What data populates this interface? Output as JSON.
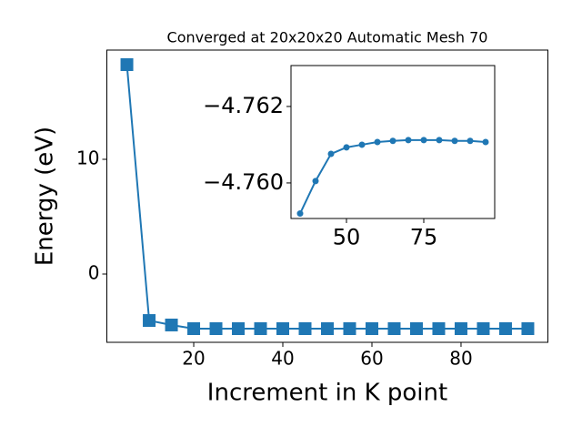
{
  "chart_data": [
    {
      "type": "line",
      "title": "Converged at 20x20x20 Automatic Mesh 70",
      "x_label": "Increment in K point",
      "y_label": "Energy (eV)",
      "x": [
        5,
        10,
        15,
        20,
        25,
        30,
        35,
        40,
        45,
        50,
        55,
        60,
        65,
        70,
        75,
        80,
        85,
        90,
        95
      ],
      "values": [
        18.25,
        -4.05,
        -4.44,
        -4.76,
        -4.76,
        -4.76,
        -4.76,
        -4.76,
        -4.76,
        -4.76,
        -4.76,
        -4.76,
        -4.76,
        -4.76,
        -4.76,
        -4.76,
        -4.76,
        -4.76,
        -4.76
      ],
      "color": "#1f77b4",
      "marker": "square",
      "xlim": [
        0.5,
        99.5
      ],
      "ylim": [
        -5.95,
        19.52
      ],
      "xticks": [
        20,
        40,
        60,
        80
      ],
      "yticks": [
        0,
        10
      ]
    },
    {
      "type": "line",
      "x": [
        35,
        40,
        45,
        50,
        55,
        60,
        65,
        70,
        75,
        80,
        85,
        90,
        95
      ],
      "values": [
        -4.7592,
        -4.76005,
        -4.76076,
        -4.76093,
        -4.761,
        -4.76107,
        -4.7611,
        -4.76112,
        -4.76112,
        -4.76112,
        -4.7611,
        -4.7611,
        -4.76107
      ],
      "color": "#1f77b4",
      "marker": "circle",
      "xlim": [
        32.06,
        97.94
      ],
      "ylim": [
        -4.75907,
        -4.76307
      ],
      "xticks": [
        50,
        75
      ],
      "yticks": [
        {
          "value": -4.762,
          "label": "−4.762"
        },
        {
          "value": -4.76,
          "label": "−4.760"
        }
      ]
    }
  ]
}
